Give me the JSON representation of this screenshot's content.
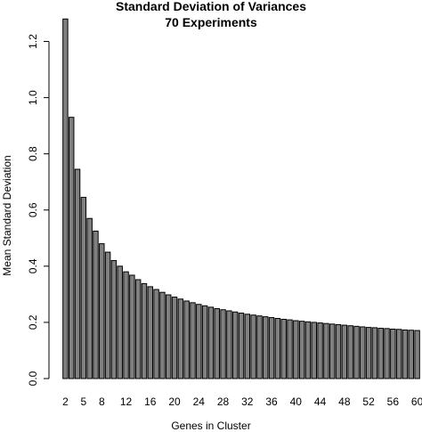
{
  "chart_data": {
    "type": "bar",
    "title": "Standard Deviation of Variances",
    "subtitle": "70 Experiments",
    "xlabel": "Genes in Cluster",
    "ylabel": "Mean Standard Deviation",
    "ylim": [
      0,
      1.3
    ],
    "y_ticks": [
      0.0,
      0.2,
      0.4,
      0.6,
      0.8,
      1.0,
      1.2
    ],
    "y_tick_labels": [
      "0.0",
      "0.2",
      "0.4",
      "0.6",
      "0.8",
      "1.0",
      "1.2"
    ],
    "x_tick_labels": [
      "2",
      "5",
      "8",
      "12",
      "16",
      "20",
      "24",
      "28",
      "32",
      "36",
      "40",
      "44",
      "48",
      "52",
      "56",
      "60"
    ],
    "x_tick_categories": [
      2,
      5,
      8,
      12,
      16,
      20,
      24,
      28,
      32,
      36,
      40,
      44,
      48,
      52,
      56,
      60
    ],
    "grid": false,
    "categories": [
      2,
      3,
      4,
      5,
      6,
      7,
      8,
      9,
      10,
      11,
      12,
      13,
      14,
      15,
      16,
      17,
      18,
      19,
      20,
      21,
      22,
      23,
      24,
      25,
      26,
      27,
      28,
      29,
      30,
      31,
      32,
      33,
      34,
      35,
      36,
      37,
      38,
      39,
      40,
      41,
      42,
      43,
      44,
      45,
      46,
      47,
      48,
      49,
      50,
      51,
      52,
      53,
      54,
      55,
      56,
      57,
      58,
      59,
      60
    ],
    "values": [
      1.28,
      0.93,
      0.745,
      0.645,
      0.57,
      0.525,
      0.48,
      0.45,
      0.42,
      0.4,
      0.38,
      0.368,
      0.352,
      0.338,
      0.327,
      0.317,
      0.307,
      0.298,
      0.29,
      0.283,
      0.276,
      0.27,
      0.264,
      0.259,
      0.254,
      0.249,
      0.245,
      0.241,
      0.237,
      0.233,
      0.229,
      0.226,
      0.223,
      0.22,
      0.217,
      0.214,
      0.211,
      0.209,
      0.206,
      0.204,
      0.202,
      0.2,
      0.198,
      0.196,
      0.194,
      0.192,
      0.19,
      0.188,
      0.186,
      0.184,
      0.182,
      0.181,
      0.179,
      0.178,
      0.176,
      0.175,
      0.173,
      0.172,
      0.171
    ]
  }
}
